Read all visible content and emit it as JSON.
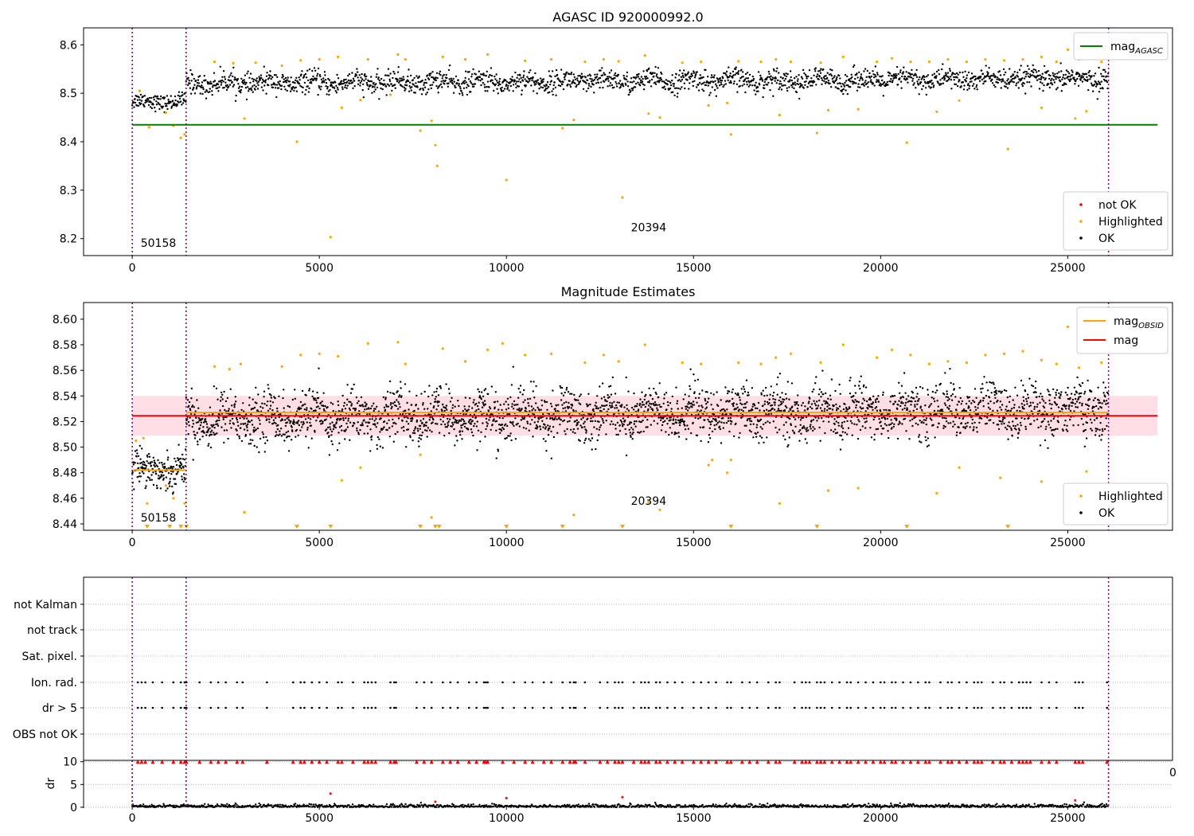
{
  "chart_data": [
    {
      "type": "scatter",
      "title": "AGASC ID 920000992.0",
      "xlim": [
        -1300,
        27800
      ],
      "ylim": [
        8.165,
        8.635
      ],
      "xticks": [
        0,
        5000,
        10000,
        15000,
        20000,
        25000,
        30000
      ],
      "yticks": [
        8.2,
        8.3,
        8.4,
        8.5,
        8.6
      ],
      "ytick_labels": [
        "8.2",
        "8.3",
        "8.4",
        "8.5",
        "8.6"
      ],
      "obsid_boundaries": [
        0,
        1440,
        26090
      ],
      "obsid_labels": [
        {
          "text": "50158",
          "x": 700,
          "y": 8.183
        },
        {
          "text": "20394",
          "x": 13800,
          "y": 8.215
        }
      ],
      "lines": [
        {
          "name": "mag_AGASC",
          "label_main": "mag",
          "label_sub": "AGASC",
          "value": 8.435,
          "color": "#008000",
          "x_range": [
            0,
            27400
          ]
        }
      ],
      "ok_segments": [
        {
          "x_range": [
            0,
            1440
          ],
          "center": 8.483,
          "spread": 0.016
        },
        {
          "x_range": [
            1440,
            26090
          ],
          "center_start": 8.52,
          "center_end": 8.53,
          "spread": 0.022
        }
      ],
      "highlighted_points": [
        [
          200,
          8.505
        ],
        [
          450,
          8.43
        ],
        [
          900,
          8.46
        ],
        [
          1100,
          8.433
        ],
        [
          1300,
          8.408
        ],
        [
          1400,
          8.415
        ],
        [
          3000,
          8.448
        ],
        [
          4400,
          8.4
        ],
        [
          5300,
          8.203
        ],
        [
          5600,
          8.47
        ],
        [
          6100,
          8.486
        ],
        [
          6900,
          8.497
        ],
        [
          7700,
          8.423
        ],
        [
          8000,
          8.443
        ],
        [
          8100,
          8.393
        ],
        [
          8150,
          8.35
        ],
        [
          10000,
          8.321
        ],
        [
          11500,
          8.428
        ],
        [
          11800,
          8.445
        ],
        [
          13100,
          8.285
        ],
        [
          13800,
          8.458
        ],
        [
          14100,
          8.45
        ],
        [
          15400,
          8.475
        ],
        [
          15900,
          8.48
        ],
        [
          16000,
          8.415
        ],
        [
          17300,
          8.455
        ],
        [
          18300,
          8.418
        ],
        [
          18600,
          8.465
        ],
        [
          19400,
          8.467
        ],
        [
          20700,
          8.398
        ],
        [
          21500,
          8.462
        ],
        [
          22100,
          8.485
        ],
        [
          23400,
          8.385
        ],
        [
          24300,
          8.47
        ],
        [
          25200,
          8.448
        ],
        [
          25500,
          8.463
        ],
        [
          2200,
          8.565
        ],
        [
          2700,
          8.562
        ],
        [
          3300,
          8.563
        ],
        [
          4000,
          8.557
        ],
        [
          4500,
          8.568
        ],
        [
          5000,
          8.57
        ],
        [
          5500,
          8.575
        ],
        [
          6300,
          8.57
        ],
        [
          7100,
          8.58
        ],
        [
          7300,
          8.57
        ],
        [
          8300,
          8.575
        ],
        [
          8900,
          8.57
        ],
        [
          9500,
          8.58
        ],
        [
          10500,
          8.567
        ],
        [
          11200,
          8.57
        ],
        [
          12100,
          8.565
        ],
        [
          12600,
          8.57
        ],
        [
          13000,
          8.566
        ],
        [
          13700,
          8.578
        ],
        [
          14700,
          8.563
        ],
        [
          15200,
          8.565
        ],
        [
          16200,
          8.566
        ],
        [
          16800,
          8.565
        ],
        [
          17200,
          8.57
        ],
        [
          17600,
          8.565
        ],
        [
          18400,
          8.563
        ],
        [
          19000,
          8.575
        ],
        [
          19900,
          8.565
        ],
        [
          20300,
          8.572
        ],
        [
          20800,
          8.565
        ],
        [
          21300,
          8.565
        ],
        [
          21800,
          8.57
        ],
        [
          22300,
          8.565
        ],
        [
          22800,
          8.57
        ],
        [
          23300,
          8.568
        ],
        [
          23800,
          8.57
        ],
        [
          24300,
          8.575
        ],
        [
          24700,
          8.565
        ],
        [
          25000,
          8.59
        ],
        [
          25300,
          8.57
        ],
        [
          25700,
          8.585
        ],
        [
          25900,
          8.565
        ]
      ],
      "legend_top": [
        {
          "label_main": "mag",
          "label_sub": "AGASC",
          "color": "#008000",
          "kind": "line"
        }
      ],
      "legend_bottom": [
        {
          "label": "not OK",
          "color": "#ff0000",
          "kind": "point"
        },
        {
          "label": "Highlighted",
          "color": "#ffa500",
          "kind": "point"
        },
        {
          "label": "OK",
          "color": "#000000",
          "kind": "point"
        }
      ]
    },
    {
      "type": "scatter",
      "title": "Magnitude Estimates",
      "xlim": [
        -1300,
        27800
      ],
      "ylim": [
        8.435,
        8.613
      ],
      "xticks": [
        0,
        5000,
        10000,
        15000,
        20000,
        25000,
        30000
      ],
      "yticks": [
        8.44,
        8.46,
        8.48,
        8.5,
        8.52,
        8.54,
        8.56,
        8.58,
        8.6
      ],
      "ytick_labels": [
        "8.44",
        "8.46",
        "8.48",
        "8.50",
        "8.52",
        "8.54",
        "8.56",
        "8.58",
        "8.60"
      ],
      "obsid_boundaries": [
        0,
        1440,
        26090
      ],
      "obsid_labels": [
        {
          "text": "50158",
          "x": 700,
          "y": 8.442
        },
        {
          "text": "20394",
          "x": 13800,
          "y": 8.455
        }
      ],
      "lines": [
        {
          "name": "mag",
          "label_main": "mag",
          "value": 8.5245,
          "color": "#ff0000",
          "x_range": [
            0,
            27400
          ],
          "band": [
            8.509,
            8.54
          ],
          "band_color": "#ffc0cb"
        },
        {
          "name": "mag_OBSID_1",
          "label_main": "mag",
          "label_sub": "OBSID",
          "value": 8.482,
          "color": "#ffa500",
          "x_range": [
            0,
            1440
          ]
        },
        {
          "name": "mag_OBSID_2",
          "label_main": "mag",
          "label_sub": "OBSID",
          "value": 8.527,
          "color": "#ffa500",
          "x_range": [
            1440,
            26090
          ]
        }
      ],
      "ok_segments": [
        {
          "x_range": [
            0,
            1440
          ],
          "center": 8.483,
          "spread": 0.014
        },
        {
          "x_range": [
            1440,
            26090
          ],
          "center_start": 8.522,
          "center_end": 8.53,
          "spread": 0.02
        }
      ],
      "triangles_at_bottom": [
        400,
        1000,
        1300,
        1450,
        4400,
        5300,
        7700,
        8100,
        8200,
        10000,
        11500,
        13100,
        16000,
        18300,
        20700,
        23400
      ],
      "highlighted_points": [
        [
          100,
          8.505
        ],
        [
          300,
          8.507
        ],
        [
          400,
          8.456
        ],
        [
          900,
          8.47
        ],
        [
          1100,
          8.46
        ],
        [
          1400,
          8.456
        ],
        [
          3000,
          8.449
        ],
        [
          5600,
          8.474
        ],
        [
          6100,
          8.484
        ],
        [
          7700,
          8.494
        ],
        [
          8000,
          8.445
        ],
        [
          11800,
          8.447
        ],
        [
          13800,
          8.457
        ],
        [
          14100,
          8.451
        ],
        [
          15400,
          8.486
        ],
        [
          15500,
          8.49
        ],
        [
          15900,
          8.48
        ],
        [
          16000,
          8.49
        ],
        [
          17300,
          8.456
        ],
        [
          18600,
          8.466
        ],
        [
          19400,
          8.468
        ],
        [
          21500,
          8.464
        ],
        [
          22100,
          8.484
        ],
        [
          23200,
          8.476
        ],
        [
          24300,
          8.473
        ],
        [
          25200,
          8.448
        ],
        [
          25500,
          8.481
        ],
        [
          2200,
          8.563
        ],
        [
          2600,
          8.561
        ],
        [
          2900,
          8.565
        ],
        [
          4000,
          8.563
        ],
        [
          4500,
          8.572
        ],
        [
          5000,
          8.573
        ],
        [
          5500,
          8.571
        ],
        [
          6300,
          8.581
        ],
        [
          7100,
          8.582
        ],
        [
          7300,
          8.565
        ],
        [
          8300,
          8.577
        ],
        [
          8900,
          8.567
        ],
        [
          9500,
          8.576
        ],
        [
          9900,
          8.581
        ],
        [
          10500,
          8.572
        ],
        [
          11200,
          8.573
        ],
        [
          12100,
          8.566
        ],
        [
          12600,
          8.572
        ],
        [
          13000,
          8.567
        ],
        [
          13700,
          8.58
        ],
        [
          14700,
          8.566
        ],
        [
          15200,
          8.565
        ],
        [
          16200,
          8.566
        ],
        [
          16800,
          8.565
        ],
        [
          17200,
          8.57
        ],
        [
          17600,
          8.573
        ],
        [
          18400,
          8.566
        ],
        [
          19000,
          8.58
        ],
        [
          19900,
          8.57
        ],
        [
          20300,
          8.576
        ],
        [
          20800,
          8.572
        ],
        [
          21300,
          8.565
        ],
        [
          21800,
          8.567
        ],
        [
          22300,
          8.566
        ],
        [
          22800,
          8.572
        ],
        [
          23300,
          8.573
        ],
        [
          23800,
          8.575
        ],
        [
          24300,
          8.568
        ],
        [
          24700,
          8.565
        ],
        [
          25000,
          8.594
        ],
        [
          25300,
          8.562
        ],
        [
          25700,
          8.593
        ],
        [
          25900,
          8.566
        ]
      ],
      "legend_top": [
        {
          "label_main": "mag",
          "label_sub": "OBSID",
          "color": "#ffa500",
          "kind": "line"
        },
        {
          "label_main": "mag",
          "label_sub": "",
          "color": "#ff0000",
          "kind": "line"
        }
      ],
      "legend_bottom": [
        {
          "label": "Highlighted",
          "color": "#ffa500",
          "kind": "point"
        },
        {
          "label": "OK",
          "color": "#000000",
          "kind": "point"
        }
      ]
    },
    {
      "type": "scatter",
      "title": "",
      "xlim": [
        -1300,
        27800
      ],
      "categories": [
        "not Kalman",
        "not track",
        "Sat. pixel.",
        "Ion. rad.",
        "dr > 5",
        "OBS not OK"
      ],
      "flagged_categories": [
        "Ion. rad.",
        "dr > 5"
      ],
      "obsid_boundaries": [
        0,
        1440,
        26090
      ],
      "flag_times": [
        150,
        250,
        350,
        550,
        800,
        1100,
        1300,
        1400,
        1450,
        1800,
        2100,
        2300,
        2500,
        2800,
        2950,
        3600,
        4300,
        4500,
        4600,
        4800,
        5000,
        5200,
        5500,
        5600,
        5900,
        6200,
        6300,
        6400,
        6500,
        6900,
        7000,
        7050,
        7600,
        7800,
        8000,
        8300,
        8500,
        8700,
        9000,
        9200,
        9400,
        9450,
        9500,
        9900,
        10200,
        10500,
        10700,
        11000,
        11200,
        11500,
        11700,
        11800,
        11850,
        12100,
        12500,
        12700,
        12900,
        13000,
        13100,
        13400,
        13600,
        13700,
        13800,
        14000,
        14100,
        14300,
        14500,
        14700,
        15000,
        15200,
        15400,
        15600,
        15900,
        16000,
        16300,
        16500,
        16700,
        17000,
        17200,
        17300,
        17700,
        17900,
        18000,
        18100,
        18300,
        18400,
        18500,
        18700,
        18900,
        19100,
        19200,
        19400,
        19600,
        19800,
        20000,
        20100,
        20300,
        20400,
        20600,
        20800,
        21000,
        21200,
        21300,
        21600,
        21800,
        21900,
        22100,
        22300,
        22500,
        22600,
        22700,
        23000,
        23200,
        23300,
        23500,
        23700,
        23800,
        23900,
        24000,
        24300,
        24500,
        24700,
        25200,
        25300,
        25400,
        26050
      ]
    },
    {
      "type": "scatter",
      "title": "",
      "ylabel": "dr",
      "xlim": [
        -1300,
        27800
      ],
      "ylim": [
        -0.2,
        10.3
      ],
      "xticks": [
        0,
        5000,
        10000,
        15000,
        20000,
        25000,
        30000
      ],
      "yticks": [
        0,
        5,
        10
      ],
      "ytick_labels": [
        "0",
        "5",
        "10"
      ],
      "obsid_boundaries": [
        0,
        1440,
        26090
      ],
      "clipped_value": 10,
      "dr_outliers": [
        [
          5300,
          3.0
        ],
        [
          10000,
          2.0
        ],
        [
          13100,
          2.2
        ],
        [
          8100,
          1.2
        ],
        [
          25200,
          1.5
        ]
      ],
      "stray_tick_label": "0"
    }
  ]
}
